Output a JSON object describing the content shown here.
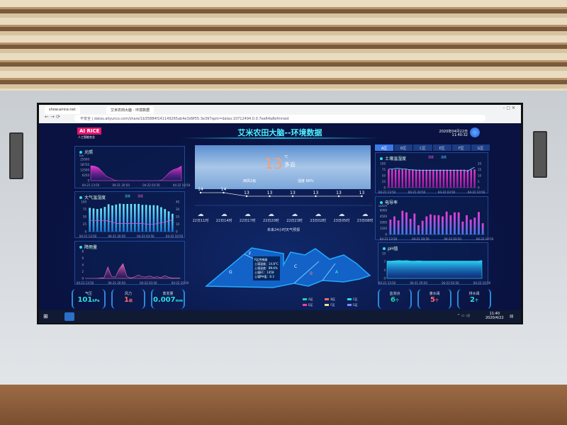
{
  "browser": {
    "tabs": [
      "show.airice.net",
      "艾米农田大脑 - 环境数据"
    ],
    "url_prefix": "不安全",
    "url": "datav.aliyuncs.com/share/1b35884f141149265ab4e3d9f55.3e397spm=datav.10712494.0.0.7ee64a8efmnwd"
  },
  "header": {
    "logo": "AI RICE",
    "logo_sub": "人工智能农业",
    "title": "艾米农田大脑--环境数据",
    "date": "2020年04月22日",
    "time": "11:40:32"
  },
  "light": {
    "title": "光照",
    "unit": "lux",
    "yticks": [
      "25000",
      "18750",
      "12500",
      "6250",
      "0"
    ],
    "xticks": [
      "04-21 13:50",
      "04-21 20:50",
      "04-22 03:50",
      "04-22 10:50"
    ],
    "color": "#e83ad8"
  },
  "air": {
    "title": "大气温湿度",
    "legend": [
      "湿度",
      "温度"
    ],
    "yl_unit": "%",
    "yr_unit": "℃",
    "yl": [
      "100",
      "75",
      "50",
      "25",
      "0"
    ],
    "yr": [
      "40",
      "30",
      "20",
      "10",
      "0"
    ],
    "xticks": [
      "04-21 13:50",
      "04-21 20:50",
      "04-22 03:50",
      "04-22 10:50"
    ]
  },
  "rain": {
    "title": "降雨量",
    "yticks": [
      "8",
      "6",
      "4",
      "2",
      "0"
    ],
    "xticks": [
      "04-21 13:50",
      "04-21 20:50",
      "04-22 03:50",
      "04-22 10:50"
    ]
  },
  "gauges_left": [
    {
      "label": "气压",
      "value": "101",
      "unit": "kPa",
      "color": "#2de0e0"
    },
    {
      "label": "风力",
      "value": "1",
      "unit": "级",
      "color": "#ff6a6a"
    },
    {
      "label": "蒸发量",
      "value": "0.007",
      "unit": "mm",
      "color": "#2de0e0"
    }
  ],
  "weather": {
    "temp": "13",
    "unit": "℃",
    "cond": "多云",
    "wind": "西风1级",
    "humidity": "湿度 88%",
    "forecast_title": "未来24小时天气预报",
    "forecast": [
      {
        "t": "22日11时",
        "v": 14
      },
      {
        "t": "22日14时",
        "v": 14
      },
      {
        "t": "22日17时",
        "v": 13
      },
      {
        "t": "22日20时",
        "v": 13
      },
      {
        "t": "22日23时",
        "v": 13
      },
      {
        "t": "23日02时",
        "v": 13
      },
      {
        "t": "23日05时",
        "v": 13
      },
      {
        "t": "23日08时",
        "v": 13
      }
    ]
  },
  "map": {
    "zones": [
      "A",
      "B",
      "C",
      "F",
      "G"
    ],
    "tooltip": [
      "F区传感器",
      "土壤温度：14.8°C",
      "土壤湿度：89.6%",
      "土壤EC：1458",
      "土壤PH值：8.3"
    ],
    "legend": [
      {
        "l": "A区",
        "c": "#19d9a0"
      },
      {
        "l": "B区",
        "c": "#ff6a6a"
      },
      {
        "l": "C区",
        "c": "#22e0f0"
      },
      {
        "l": "E区",
        "c": "#ff3aa0"
      },
      {
        "l": "F区",
        "c": "#f0e090"
      },
      {
        "l": "G区",
        "c": "#7a8cff"
      }
    ]
  },
  "zone_tabs": [
    "A区",
    "B区",
    "C区",
    "E区",
    "F区",
    "G区"
  ],
  "soil": {
    "title": "土壤温湿度",
    "legend": [
      "湿度",
      "温度"
    ],
    "yl_unit": "%",
    "yr_unit": "℃",
    "yl": [
      "100",
      "75",
      "50",
      "25",
      "0"
    ],
    "yr": [
      "20",
      "15",
      "10",
      "5",
      "0"
    ],
    "xticks": [
      "04-21 13:50",
      "04-21 20:50",
      "04-22 03:50",
      "04-22 10:50"
    ]
  },
  "ec": {
    "title": "电导率",
    "unit": "us/cm",
    "yticks": [
      "6000",
      "4500",
      "3000",
      "1500",
      "0"
    ],
    "xticks": [
      "04-21 13:50",
      "04-21 20:50",
      "04-22 03:50",
      "04-22 10:50"
    ]
  },
  "ph": {
    "title": "pH值",
    "yticks": [
      "10",
      "7",
      "4",
      "0"
    ],
    "xticks": [
      "04-21 13:50",
      "04-21 20:50",
      "04-22 03:50",
      "04-22 10:50"
    ]
  },
  "gauges_right": [
    {
      "label": "监测点",
      "value": "6",
      "unit": "个",
      "color": "#19d9a0"
    },
    {
      "label": "灌水阀",
      "value": "5",
      "unit": "个",
      "color": "#ff6a6a"
    },
    {
      "label": "排水阀",
      "value": "2",
      "unit": "个",
      "color": "#2de0e0"
    }
  ],
  "taskbar": {
    "time": "11:40",
    "date": "2020/4/22"
  },
  "chart_data": [
    {
      "type": "area",
      "title": "光照",
      "ylim": [
        0,
        25000
      ],
      "values": [
        17500,
        17000,
        15000,
        10000,
        5000,
        3000,
        500,
        0,
        0,
        0,
        0,
        0,
        0,
        0,
        0,
        0,
        0,
        0,
        500,
        5000,
        10000,
        13000,
        14500,
        17000
      ]
    },
    {
      "type": "bar",
      "title": "大气温湿度",
      "series": [
        {
          "name": "湿度",
          "type": "bar",
          "values": [
            80,
            78,
            76,
            78,
            83,
            92,
            88,
            91,
            94,
            93,
            93,
            93,
            93,
            93,
            90,
            90,
            89,
            89,
            88,
            82,
            76,
            68,
            60
          ]
        },
        {
          "name": "温度",
          "type": "line",
          "values": [
            15,
            15,
            15,
            15,
            15,
            14,
            13,
            11,
            11,
            11,
            11,
            11,
            11,
            11,
            11,
            10,
            10,
            10,
            11,
            12,
            13,
            14,
            16
          ]
        }
      ],
      "ylim": [
        0,
        100
      ],
      "y2lim": [
        0,
        40
      ]
    },
    {
      "type": "area",
      "title": "降雨量",
      "ylim": [
        0,
        8
      ],
      "values": [
        0,
        0,
        0,
        0,
        0.1,
        0.2,
        3.4,
        0.5,
        0.4,
        2.8,
        4.4,
        0.6,
        0.1,
        0.4,
        1.0,
        0.5,
        0.4,
        0.7,
        0.3,
        0.5,
        0.2,
        0.8,
        0.3,
        0.1,
        0.1,
        0.1
      ]
    },
    {
      "type": "bar",
      "title": "土壤温湿度",
      "series": [
        {
          "name": "湿度",
          "type": "bar",
          "values": [
            76,
            76,
            76,
            76,
            76,
            76,
            76,
            76,
            75,
            75,
            75,
            75,
            75,
            75,
            75,
            75,
            75,
            75,
            75,
            75,
            75,
            75,
            75,
            74,
            75,
            76
          ]
        },
        {
          "name": "温度",
          "type": "line",
          "values": [
            15.5,
            15.5,
            16,
            16,
            15.5,
            15.5,
            15,
            14.8,
            14.6,
            14.5,
            14.5,
            14.5,
            14.5,
            14.4,
            14.4,
            14.4,
            14.4,
            14.4,
            14.4,
            14.4,
            14.4,
            14.4,
            14.4,
            13.8,
            15.5,
            17
          ]
        }
      ],
      "ylim": [
        0,
        100
      ],
      "y2lim": [
        0,
        20
      ]
    },
    {
      "type": "bar",
      "title": "电导率",
      "ylim": [
        0,
        6000
      ],
      "values": [
        3700,
        4500,
        3500,
        5900,
        5500,
        3900,
        5200,
        2300,
        3400,
        4500,
        5000,
        4800,
        4800,
        4500,
        5700,
        4800,
        5500,
        5500,
        3200,
        4800,
        3700,
        4200,
        5600,
        2800
      ]
    },
    {
      "type": "area",
      "title": "pH值",
      "ylim": [
        0,
        10
      ],
      "values": [
        7,
        7,
        7.1,
        7.2,
        7.1,
        7.2,
        7,
        7,
        7.1,
        7,
        7,
        7,
        7,
        7,
        7,
        7,
        7,
        7,
        7,
        7,
        7,
        7,
        7,
        7,
        7.2
      ]
    }
  ]
}
